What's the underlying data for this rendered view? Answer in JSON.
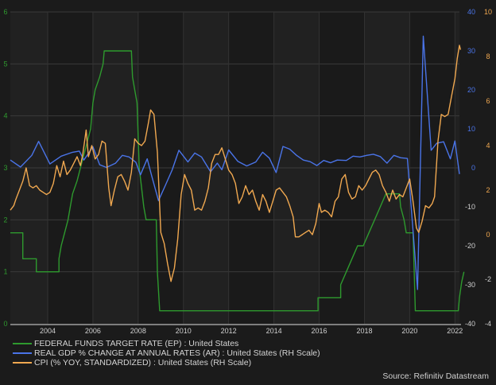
{
  "chart_data": {
    "type": "line",
    "title": "",
    "xlabel": "",
    "x_ticks": [
      "2004",
      "2006",
      "2008",
      "2010",
      "2012",
      "2014",
      "2016",
      "2018",
      "2020",
      "2022"
    ],
    "x_range": [
      2002.35,
      2022.2
    ],
    "grid": true,
    "legend_position": "bottom-left",
    "axes": {
      "left": {
        "color": "#2f9a2f",
        "ticks": [
          0,
          1,
          2,
          3,
          4,
          5,
          6
        ],
        "range": [
          0,
          6
        ],
        "series": "FEDERAL FUNDS TARGET RATE (EP) : United States"
      },
      "right_inner": {
        "color": "#4a74e8",
        "ticks": [
          -40,
          -30,
          -20,
          -10,
          0,
          10,
          20,
          30,
          40
        ],
        "range": [
          -40,
          40
        ],
        "series": "REAL GDP % CHANGE AT ANNUAL RATES (AR) : United States (RH Scale)"
      },
      "right_outer": {
        "color": "#f0a850",
        "ticks": [
          -4,
          -2,
          0,
          2,
          4,
          6,
          8,
          10
        ],
        "range": [
          -4,
          10
        ],
        "series": "CPI (% YOY, STANDARDIZED) : United States (RH Scale)"
      }
    },
    "series": [
      {
        "name": "FEDERAL FUNDS TARGET RATE (EP) : United States",
        "color": "#2e9a2e",
        "axis": "left",
        "step": true,
        "points": [
          [
            2002.35,
            1.75
          ],
          [
            2002.9,
            1.75
          ],
          [
            2002.9,
            1.25
          ],
          [
            2003.5,
            1.25
          ],
          [
            2003.5,
            1.0
          ],
          [
            2004.5,
            1.0
          ],
          [
            2004.5,
            1.25
          ],
          [
            2004.6,
            1.5
          ],
          [
            2004.75,
            1.75
          ],
          [
            2004.9,
            2.0
          ],
          [
            2005.0,
            2.25
          ],
          [
            2005.1,
            2.5
          ],
          [
            2005.3,
            2.75
          ],
          [
            2005.45,
            3.0
          ],
          [
            2005.6,
            3.25
          ],
          [
            2005.75,
            3.5
          ],
          [
            2005.9,
            3.75
          ],
          [
            2006.0,
            4.25
          ],
          [
            2006.1,
            4.5
          ],
          [
            2006.3,
            4.75
          ],
          [
            2006.45,
            5.0
          ],
          [
            2006.5,
            5.25
          ],
          [
            2007.7,
            5.25
          ],
          [
            2007.75,
            4.75
          ],
          [
            2007.85,
            4.5
          ],
          [
            2007.95,
            4.25
          ],
          [
            2008.05,
            3.0
          ],
          [
            2008.25,
            2.25
          ],
          [
            2008.35,
            2.0
          ],
          [
            2008.8,
            2.0
          ],
          [
            2008.85,
            1.0
          ],
          [
            2008.95,
            0.25
          ],
          [
            2015.95,
            0.25
          ],
          [
            2015.95,
            0.5
          ],
          [
            2016.95,
            0.5
          ],
          [
            2016.95,
            0.75
          ],
          [
            2017.2,
            1.0
          ],
          [
            2017.45,
            1.25
          ],
          [
            2017.7,
            1.5
          ],
          [
            2017.95,
            1.5
          ],
          [
            2018.2,
            1.75
          ],
          [
            2018.45,
            2.0
          ],
          [
            2018.7,
            2.25
          ],
          [
            2018.95,
            2.5
          ],
          [
            2019.55,
            2.5
          ],
          [
            2019.6,
            2.25
          ],
          [
            2019.75,
            2.0
          ],
          [
            2019.85,
            1.75
          ],
          [
            2020.15,
            1.75
          ],
          [
            2020.2,
            1.0
          ],
          [
            2020.25,
            0.25
          ],
          [
            2022.15,
            0.25
          ],
          [
            2022.2,
            0.5
          ],
          [
            2022.3,
            0.8
          ],
          [
            2022.4,
            1.0
          ]
        ]
      },
      {
        "name": "REAL GDP % CHANGE AT ANNUAL RATES (AR) : United States (RH Scale)",
        "color": "#4a74e8",
        "axis": "right_inner",
        "points": [
          [
            2002.35,
            2.0
          ],
          [
            2002.8,
            0.2
          ],
          [
            2003.3,
            3.2
          ],
          [
            2003.6,
            6.8
          ],
          [
            2004.1,
            1.0
          ],
          [
            2004.6,
            3.0
          ],
          [
            2005.1,
            4.0
          ],
          [
            2005.4,
            4.3
          ],
          [
            2005.6,
            2.0
          ],
          [
            2006.0,
            5.4
          ],
          [
            2006.3,
            0.8
          ],
          [
            2006.6,
            0.1
          ],
          [
            2007.0,
            1.2
          ],
          [
            2007.3,
            3.2
          ],
          [
            2007.6,
            2.8
          ],
          [
            2007.9,
            1.4
          ],
          [
            2008.1,
            -1.8
          ],
          [
            2008.4,
            2.3
          ],
          [
            2008.6,
            -2.1
          ],
          [
            2008.9,
            -8.4
          ],
          [
            2009.2,
            -4.5
          ],
          [
            2009.5,
            -0.6
          ],
          [
            2009.8,
            4.5
          ],
          [
            2010.2,
            1.5
          ],
          [
            2010.5,
            3.8
          ],
          [
            2010.8,
            2.8
          ],
          [
            2011.2,
            -1.0
          ],
          [
            2011.5,
            1.2
          ],
          [
            2011.7,
            -0.5
          ],
          [
            2012.0,
            4.6
          ],
          [
            2012.4,
            1.7
          ],
          [
            2012.8,
            0.5
          ],
          [
            2013.2,
            1.5
          ],
          [
            2013.5,
            4.0
          ],
          [
            2013.8,
            2.5
          ],
          [
            2014.1,
            -1.2
          ],
          [
            2014.4,
            5.5
          ],
          [
            2014.7,
            4.8
          ],
          [
            2015.0,
            3.2
          ],
          [
            2015.3,
            2.0
          ],
          [
            2015.6,
            1.6
          ],
          [
            2015.9,
            0.6
          ],
          [
            2016.2,
            1.9
          ],
          [
            2016.5,
            1.3
          ],
          [
            2016.8,
            2.0
          ],
          [
            2017.2,
            1.9
          ],
          [
            2017.5,
            3.0
          ],
          [
            2017.8,
            2.8
          ],
          [
            2018.1,
            3.2
          ],
          [
            2018.4,
            3.5
          ],
          [
            2018.7,
            2.9
          ],
          [
            2019.0,
            1.2
          ],
          [
            2019.3,
            3.2
          ],
          [
            2019.6,
            2.6
          ],
          [
            2019.9,
            2.4
          ],
          [
            2020.0,
            -5.0
          ],
          [
            2020.35,
            -31.2
          ],
          [
            2020.6,
            33.8
          ],
          [
            2020.95,
            4.5
          ],
          [
            2021.2,
            6.3
          ],
          [
            2021.5,
            6.7
          ],
          [
            2021.8,
            2.3
          ],
          [
            2022.0,
            6.9
          ],
          [
            2022.2,
            -1.6
          ]
        ]
      },
      {
        "name": "CPI (% YOY, STANDARDIZED) : United States (RH Scale)",
        "color": "#f0a850",
        "axis": "right_outer",
        "points": [
          [
            2002.35,
            1.1
          ],
          [
            2002.5,
            1.3
          ],
          [
            2002.6,
            1.6
          ],
          [
            2002.75,
            2.0
          ],
          [
            2002.9,
            2.4
          ],
          [
            2003.05,
            3.0
          ],
          [
            2003.2,
            2.2
          ],
          [
            2003.35,
            2.1
          ],
          [
            2003.5,
            2.2
          ],
          [
            2003.65,
            2.0
          ],
          [
            2003.8,
            1.9
          ],
          [
            2003.95,
            1.8
          ],
          [
            2004.1,
            1.9
          ],
          [
            2004.25,
            2.3
          ],
          [
            2004.4,
            3.1
          ],
          [
            2004.55,
            2.6
          ],
          [
            2004.7,
            3.3
          ],
          [
            2004.85,
            2.7
          ],
          [
            2005.0,
            2.9
          ],
          [
            2005.15,
            3.2
          ],
          [
            2005.3,
            3.5
          ],
          [
            2005.45,
            3.1
          ],
          [
            2005.55,
            3.6
          ],
          [
            2005.7,
            4.7
          ],
          [
            2005.8,
            3.5
          ],
          [
            2005.95,
            4.0
          ],
          [
            2006.1,
            3.4
          ],
          [
            2006.25,
            3.6
          ],
          [
            2006.4,
            4.2
          ],
          [
            2006.55,
            4.1
          ],
          [
            2006.7,
            2.1
          ],
          [
            2006.8,
            1.3
          ],
          [
            2006.95,
            2.0
          ],
          [
            2007.1,
            2.6
          ],
          [
            2007.25,
            2.7
          ],
          [
            2007.4,
            2.4
          ],
          [
            2007.55,
            2.0
          ],
          [
            2007.7,
            2.8
          ],
          [
            2007.85,
            4.3
          ],
          [
            2008.0,
            4.1
          ],
          [
            2008.15,
            4.0
          ],
          [
            2008.3,
            4.2
          ],
          [
            2008.45,
            5.0
          ],
          [
            2008.55,
            5.6
          ],
          [
            2008.7,
            5.4
          ],
          [
            2008.85,
            3.7
          ],
          [
            2009.0,
            0.1
          ],
          [
            2009.15,
            -0.4
          ],
          [
            2009.3,
            -1.3
          ],
          [
            2009.45,
            -2.1
          ],
          [
            2009.6,
            -1.5
          ],
          [
            2009.75,
            -0.2
          ],
          [
            2009.9,
            1.8
          ],
          [
            2010.05,
            2.7
          ],
          [
            2010.2,
            2.3
          ],
          [
            2010.35,
            2.0
          ],
          [
            2010.5,
            1.1
          ],
          [
            2010.65,
            1.2
          ],
          [
            2010.8,
            1.1
          ],
          [
            2010.95,
            1.5
          ],
          [
            2011.1,
            2.1
          ],
          [
            2011.25,
            3.2
          ],
          [
            2011.4,
            3.6
          ],
          [
            2011.55,
            3.6
          ],
          [
            2011.7,
            3.9
          ],
          [
            2011.85,
            3.4
          ],
          [
            2012.0,
            2.9
          ],
          [
            2012.15,
            2.7
          ],
          [
            2012.3,
            2.3
          ],
          [
            2012.45,
            1.4
          ],
          [
            2012.6,
            1.7
          ],
          [
            2012.75,
            2.2
          ],
          [
            2012.9,
            1.8
          ],
          [
            2013.05,
            2.0
          ],
          [
            2013.2,
            1.5
          ],
          [
            2013.35,
            1.1
          ],
          [
            2013.5,
            1.8
          ],
          [
            2013.65,
            1.5
          ],
          [
            2013.8,
            1.0
          ],
          [
            2013.95,
            1.5
          ],
          [
            2014.1,
            2.0
          ],
          [
            2014.25,
            2.1
          ],
          [
            2014.4,
            1.9
          ],
          [
            2014.55,
            1.7
          ],
          [
            2014.7,
            1.3
          ],
          [
            2014.85,
            0.8
          ],
          [
            2014.95,
            -0.1
          ],
          [
            2015.1,
            -0.1
          ],
          [
            2015.25,
            0.0
          ],
          [
            2015.4,
            0.1
          ],
          [
            2015.55,
            0.2
          ],
          [
            2015.7,
            0.0
          ],
          [
            2015.85,
            0.5
          ],
          [
            2016.0,
            1.4
          ],
          [
            2016.1,
            1.0
          ],
          [
            2016.25,
            1.1
          ],
          [
            2016.4,
            1.0
          ],
          [
            2016.55,
            0.8
          ],
          [
            2016.7,
            1.5
          ],
          [
            2016.85,
            1.7
          ],
          [
            2017.0,
            2.5
          ],
          [
            2017.15,
            2.7
          ],
          [
            2017.3,
            1.9
          ],
          [
            2017.45,
            1.6
          ],
          [
            2017.6,
            1.7
          ],
          [
            2017.75,
            2.2
          ],
          [
            2017.9,
            2.0
          ],
          [
            2018.05,
            2.2
          ],
          [
            2018.2,
            2.5
          ],
          [
            2018.35,
            2.8
          ],
          [
            2018.5,
            2.9
          ],
          [
            2018.65,
            2.7
          ],
          [
            2018.8,
            2.2
          ],
          [
            2018.95,
            1.9
          ],
          [
            2019.1,
            1.5
          ],
          [
            2019.25,
            2.0
          ],
          [
            2019.4,
            1.6
          ],
          [
            2019.55,
            1.8
          ],
          [
            2019.7,
            1.7
          ],
          [
            2019.85,
            2.1
          ],
          [
            2020.0,
            2.5
          ],
          [
            2020.15,
            1.5
          ],
          [
            2020.3,
            0.3
          ],
          [
            2020.4,
            0.1
          ],
          [
            2020.55,
            0.6
          ],
          [
            2020.7,
            1.3
          ],
          [
            2020.85,
            1.2
          ],
          [
            2021.0,
            1.4
          ],
          [
            2021.1,
            1.7
          ],
          [
            2021.25,
            4.2
          ],
          [
            2021.4,
            5.4
          ],
          [
            2021.55,
            5.3
          ],
          [
            2021.7,
            5.4
          ],
          [
            2021.85,
            6.2
          ],
          [
            2022.0,
            7.0
          ],
          [
            2022.1,
            7.9
          ],
          [
            2022.2,
            8.5
          ],
          [
            2022.25,
            8.3
          ]
        ]
      }
    ]
  },
  "legend": {
    "items": [
      {
        "label": "FEDERAL FUNDS TARGET RATE (EP) : United States",
        "color": "#2e9a2e"
      },
      {
        "label": "REAL GDP % CHANGE AT ANNUAL RATES (AR) : United States (RH Scale)",
        "color": "#4a74e8"
      },
      {
        "label": "CPI (% YOY, STANDARDIZED) : United States (RH Scale)",
        "color": "#f0a850"
      }
    ]
  },
  "source": "Source: Refinitiv Datastream"
}
